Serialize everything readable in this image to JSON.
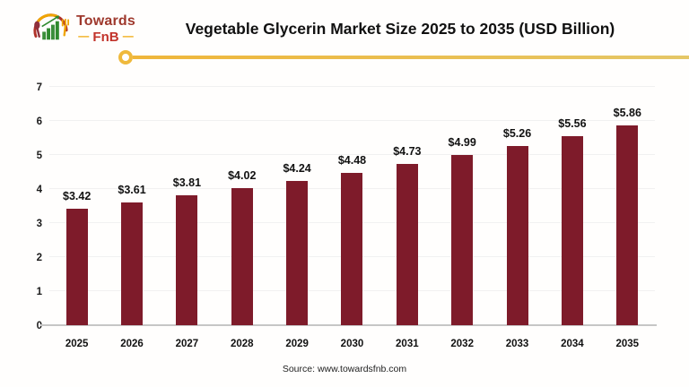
{
  "logo": {
    "brand_top": "Towards",
    "brand_bottom": "FnB",
    "dash": "—"
  },
  "header": {
    "title": "Vegetable Glycerin Market Size 2025 to 2035 (USD Billion)"
  },
  "chart_data": {
    "type": "bar",
    "title": "Vegetable Glycerin Market Size 2025 to 2035 (USD Billion)",
    "categories": [
      "2025",
      "2026",
      "2027",
      "2028",
      "2029",
      "2030",
      "2031",
      "2032",
      "2033",
      "2034",
      "2035"
    ],
    "values": [
      3.42,
      3.61,
      3.81,
      4.02,
      4.24,
      4.48,
      4.73,
      4.99,
      5.26,
      5.56,
      5.86
    ],
    "value_labels": [
      "$3.42",
      "$3.61",
      "$3.81",
      "$4.02",
      "$4.24",
      "$4.48",
      "$4.73",
      "$4.99",
      "$5.26",
      "$5.56",
      "$5.86"
    ],
    "unit": "USD Billion",
    "xlabel": "",
    "ylabel": "",
    "ylim": [
      0,
      7
    ],
    "yticks": [
      0,
      1,
      2,
      3,
      4,
      5,
      6,
      7
    ],
    "grid": "horizontal",
    "legend": "none",
    "bar_color": "#7E1B2A"
  },
  "footer": {
    "source": "Source: www.towardsfnb.com"
  },
  "colors": {
    "bar_maroon": "#7E1B2A",
    "accent_gold": "#EFB93C",
    "brand_red": "#C2332B",
    "brand_dark_red": "#9E382C",
    "brand_green": "#3A8E3A"
  }
}
